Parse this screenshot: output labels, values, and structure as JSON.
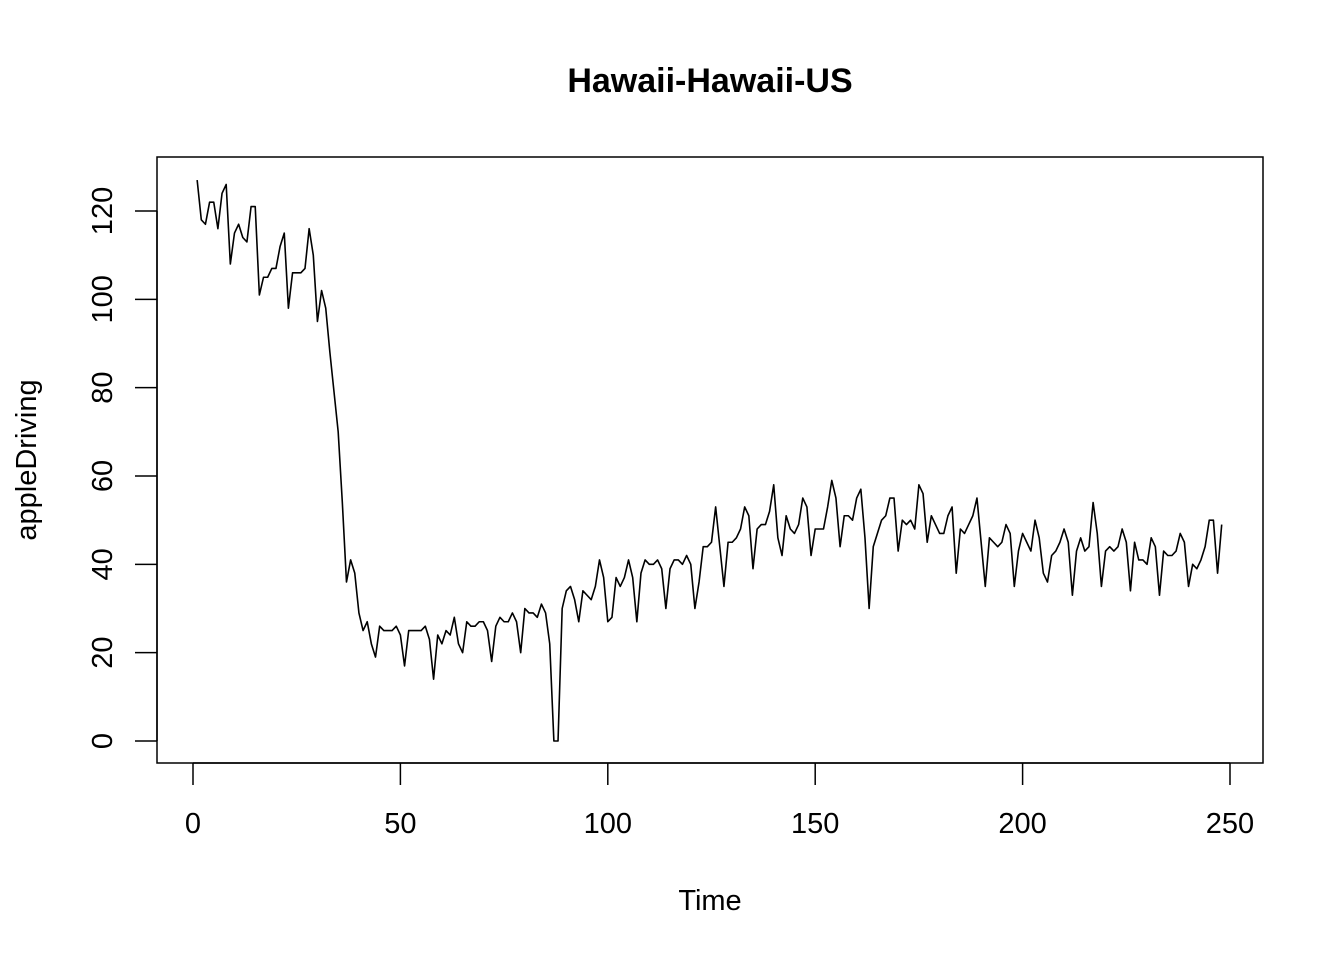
{
  "chart_data": {
    "type": "line",
    "title": "Hawaii-Hawaii-US",
    "xlabel": "Time",
    "ylabel": "appleDriving",
    "xlim": [
      1,
      248
    ],
    "ylim": [
      0,
      127
    ],
    "x_ticks": [
      0,
      50,
      100,
      150,
      200,
      250
    ],
    "x_tick_labels": [
      "0",
      "50",
      "100",
      "150",
      "200",
      "250"
    ],
    "y_ticks": [
      0,
      20,
      40,
      60,
      80,
      100,
      120
    ],
    "y_tick_labels": [
      "0",
      "20",
      "40",
      "60",
      "80",
      "100",
      "120"
    ],
    "grid": false,
    "legend": "none",
    "line_color": "#000000",
    "series": [
      {
        "x_start": 1,
        "values": [
          127,
          118,
          117,
          122,
          122,
          116,
          124,
          126,
          108,
          115,
          117,
          114,
          113,
          121,
          121,
          101,
          105,
          105,
          107,
          107,
          112,
          115,
          98,
          106,
          106,
          106,
          107,
          116,
          110,
          95,
          102,
          98,
          88,
          79,
          70,
          54,
          36,
          41,
          38,
          29,
          25,
          27,
          22,
          19,
          26,
          25,
          25,
          25,
          26,
          24,
          17,
          25,
          25,
          25,
          25,
          26,
          23,
          14,
          24,
          22,
          25,
          24,
          28,
          22,
          20,
          27,
          26,
          26,
          27,
          27,
          25,
          18,
          26,
          28,
          27,
          27,
          29,
          27,
          20,
          30,
          29,
          29,
          28,
          31,
          29,
          22,
          0,
          0,
          30,
          34,
          35,
          32,
          27,
          34,
          33,
          32,
          35,
          41,
          37,
          27,
          28,
          37,
          35,
          37,
          41,
          37,
          27,
          38,
          41,
          40,
          40,
          41,
          39,
          30,
          39,
          41,
          41,
          40,
          42,
          40,
          30,
          36,
          44,
          44,
          45,
          53,
          44,
          35,
          45,
          45,
          46,
          48,
          53,
          51,
          39,
          48,
          49,
          49,
          52,
          58,
          46,
          42,
          51,
          48,
          47,
          49,
          55,
          53,
          42,
          48,
          48,
          48,
          53,
          59,
          55,
          44,
          51,
          51,
          50,
          55,
          57,
          46,
          30,
          44,
          47,
          50,
          51,
          55,
          55,
          43,
          50,
          49,
          50,
          48,
          58,
          56,
          45,
          51,
          49,
          47,
          47,
          51,
          53,
          38,
          48,
          47,
          49,
          51,
          55,
          45,
          35,
          46,
          45,
          44,
          45,
          49,
          47,
          35,
          43,
          47,
          45,
          43,
          50,
          46,
          38,
          36,
          42,
          43,
          45,
          48,
          45,
          33,
          43,
          46,
          43,
          44,
          54,
          47,
          35,
          43,
          44,
          43,
          44,
          48,
          45,
          34,
          45,
          41,
          41,
          40,
          46,
          44,
          33,
          43,
          42,
          42,
          43,
          47,
          45,
          35,
          40,
          39,
          41,
          44,
          50,
          50,
          38,
          49
        ]
      }
    ]
  }
}
